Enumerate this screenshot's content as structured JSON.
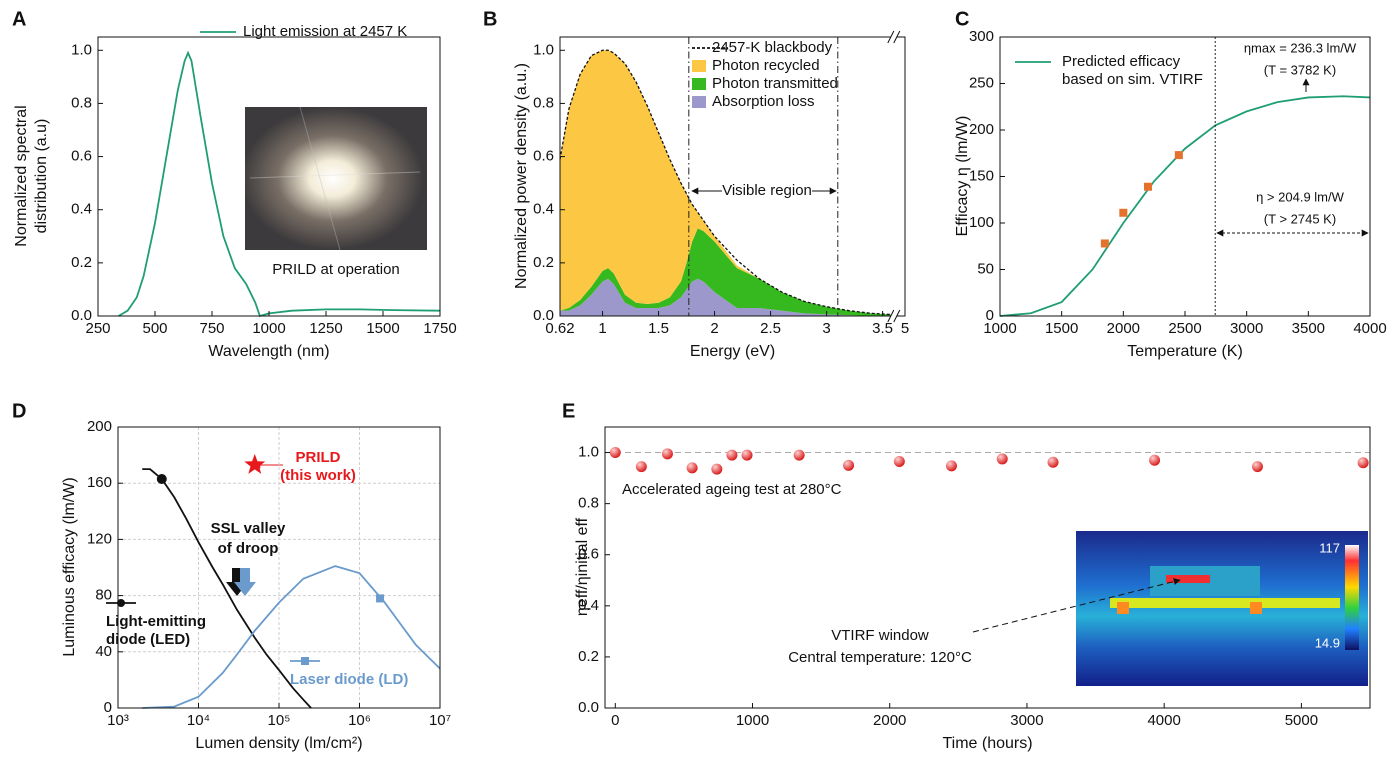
{
  "chart_data": [
    {
      "panel": "A",
      "type": "line",
      "xlabel": "Wavelength (nm)",
      "ylabel": [
        "Normalized spectral",
        "distribution (a.u)"
      ],
      "xlim": [
        250,
        1750
      ],
      "xticks": [
        250,
        500,
        750,
        1000,
        1250,
        1500,
        1750
      ],
      "ylim": [
        0,
        1.05
      ],
      "yticks": [
        {
          "value": 0,
          "label": "0.0"
        },
        0.2,
        0.4,
        0.6,
        0.8,
        {
          "value": 1,
          "label": "1.0"
        }
      ],
      "series": [
        {
          "name": "Light emission at 2457 K",
          "kind": "line",
          "color": "#1f9e74",
          "x": [
            340,
            380,
            420,
            450,
            500,
            550,
            600,
            630,
            645,
            660,
            700,
            750,
            800,
            850,
            900,
            940,
            960,
            1000,
            1100,
            1250,
            1400,
            1550,
            1750
          ],
          "values": [
            0,
            0.02,
            0.07,
            0.15,
            0.35,
            0.6,
            0.85,
            0.96,
            0.99,
            0.96,
            0.75,
            0.5,
            0.3,
            0.18,
            0.12,
            0.05,
            0.0,
            0.01,
            0.02,
            0.025,
            0.025,
            0.022,
            0.02
          ]
        }
      ],
      "annotations": [
        "PRILD at operation"
      ]
    },
    {
      "panel": "B",
      "type": "area",
      "xlabel": "Energy (eV)",
      "ylabel": "Normalized power density (a.u.)",
      "xlim": [
        0.62,
        5
      ],
      "x_break": [
        3.6,
        4.9
      ],
      "xticks": [
        0.62,
        1,
        1.5,
        2,
        2.5,
        3,
        3.5,
        5
      ],
      "ylim": [
        0,
        1.05
      ],
      "yticks": [
        {
          "value": 0,
          "label": "0.0"
        },
        0.2,
        0.4,
        0.6,
        0.8,
        {
          "value": 1,
          "label": "1.0"
        }
      ],
      "x": [
        0.62,
        0.7,
        0.8,
        0.9,
        1.0,
        1.05,
        1.1,
        1.2,
        1.3,
        1.4,
        1.5,
        1.6,
        1.7,
        1.75,
        1.8,
        1.85,
        1.9,
        2.0,
        2.2,
        2.4,
        2.6,
        2.8,
        3.0,
        3.2,
        3.4,
        3.6
      ],
      "series": [
        {
          "name": "2457-K blackbody",
          "kind": "line",
          "style": "dashed",
          "color": "#111111",
          "values": [
            0.59,
            0.78,
            0.91,
            0.98,
            1.0,
            1.0,
            0.99,
            0.95,
            0.88,
            0.79,
            0.69,
            0.59,
            0.5,
            0.46,
            0.42,
            0.39,
            0.36,
            0.3,
            0.21,
            0.14,
            0.09,
            0.055,
            0.035,
            0.02,
            0.01,
            0.005
          ]
        },
        {
          "name": "Photon recycled",
          "kind": "area",
          "color": "#fcc844",
          "values": [
            0.57,
            0.75,
            0.85,
            0.87,
            0.83,
            0.82,
            0.83,
            0.87,
            0.83,
            0.745,
            0.64,
            0.52,
            0.37,
            0.26,
            0.14,
            0.06,
            0.04,
            0.02,
            0.01,
            0,
            0,
            0,
            0,
            0,
            0,
            0
          ]
        },
        {
          "name": "Photon transmitted",
          "kind": "area",
          "color": "#36b81f",
          "values": [
            0.0,
            0.01,
            0.02,
            0.03,
            0.04,
            0.04,
            0.04,
            0.03,
            0.02,
            0.015,
            0.02,
            0.03,
            0.06,
            0.1,
            0.15,
            0.19,
            0.19,
            0.19,
            0.15,
            0.11,
            0.07,
            0.045,
            0.029,
            0.017,
            0.009,
            0.005
          ]
        },
        {
          "name": "Absorption loss",
          "kind": "area",
          "color": "#9d98cc",
          "values": [
            0.02,
            0.02,
            0.04,
            0.08,
            0.13,
            0.14,
            0.12,
            0.05,
            0.03,
            0.03,
            0.03,
            0.04,
            0.07,
            0.1,
            0.13,
            0.14,
            0.13,
            0.09,
            0.03,
            0.03,
            0.02,
            0.01,
            0.006,
            0.003,
            0.001,
            0.0
          ]
        }
      ],
      "vlines": [
        1.77,
        3.1
      ],
      "annotations": [
        "Visible region"
      ]
    },
    {
      "panel": "C",
      "type": "line",
      "xlabel": "Temperature (K)",
      "ylabel": "Efficacy η (lm/W)",
      "xlim": [
        1000,
        4000
      ],
      "xticks": [
        1000,
        1500,
        2000,
        2500,
        3000,
        3500,
        4000
      ],
      "ylim": [
        0,
        300
      ],
      "yticks": [
        0,
        50,
        100,
        150,
        200,
        250,
        300
      ],
      "series": [
        {
          "name": [
            "Predicted efficacy",
            "based on sim. VTIRF"
          ],
          "kind": "line",
          "color": "#1f9e74",
          "x": [
            1000,
            1250,
            1500,
            1750,
            2000,
            2250,
            2500,
            2745,
            3000,
            3250,
            3500,
            3782,
            4000
          ],
          "values": [
            0,
            3,
            15,
            50,
            100,
            145,
            180,
            204.9,
            220,
            230,
            235,
            236.3,
            235
          ]
        },
        {
          "kind": "points",
          "marker": "square",
          "color": "#e4722c",
          "x": [
            1850,
            2000,
            2200,
            2450
          ],
          "values": [
            78,
            111,
            139,
            173
          ]
        }
      ],
      "vlines": [
        2745
      ],
      "annotations": [
        "ηmax = 236.3 lm/W",
        "(T = 3782 K)",
        "η > 204.9 lm/W",
        "(T > 2745 K)"
      ]
    },
    {
      "panel": "D",
      "type": "line",
      "xscale": "log",
      "grid": true,
      "xlabel": "Lumen density (lm/cm²)",
      "ylabel": "Luminous efficacy (lm/W)",
      "xlim": [
        1000,
        10000000
      ],
      "xticks": [
        {
          "value": 1000,
          "label": "10³"
        },
        {
          "value": 10000,
          "label": "10⁴"
        },
        {
          "value": 100000,
          "label": "10⁵"
        },
        {
          "value": 1000000,
          "label": "10⁶"
        },
        {
          "value": 10000000,
          "label": "10⁷"
        }
      ],
      "ylim": [
        0,
        200
      ],
      "yticks": [
        0,
        40,
        80,
        120,
        160,
        200
      ],
      "series": [
        {
          "name": [
            "Light-emitting",
            "diode (LED)"
          ],
          "kind": "line",
          "color": "#111111",
          "x": [
            2000,
            2500,
            3500,
            5000,
            7000,
            10000,
            15000,
            20000,
            30000,
            50000,
            70000,
            100000,
            150000,
            200000,
            250000
          ],
          "values": [
            170,
            170,
            163,
            150,
            135,
            118,
            100,
            88,
            70,
            50,
            38,
            27,
            14,
            6,
            0
          ]
        },
        {
          "name": [
            "Laser diode (LD)"
          ],
          "kind": "line",
          "color": "#6a9bcc",
          "x": [
            2000,
            5000,
            10000,
            20000,
            30000,
            50000,
            100000,
            200000,
            500000,
            1000000,
            2000000,
            5000000,
            10000000
          ],
          "values": [
            0,
            1,
            8,
            25,
            38,
            55,
            75,
            92,
            101,
            96,
            76,
            45,
            28
          ]
        },
        {
          "kind": "points",
          "marker": "circle",
          "color": "#111111",
          "x": [
            3500
          ],
          "values": [
            163
          ]
        },
        {
          "name": [
            "PRILD",
            "(this work)"
          ],
          "kind": "points",
          "marker": "star",
          "color": "#e8191c",
          "x": [
            50000
          ],
          "values": [
            173
          ]
        },
        {
          "kind": "points",
          "marker": "square",
          "color": "#6a9bcc",
          "x": [
            1800000
          ],
          "values": [
            78
          ]
        }
      ],
      "annotations": [
        "SSL valley",
        "of droop"
      ]
    },
    {
      "panel": "E",
      "type": "scatter",
      "xlabel": "Time (hours)",
      "ylabel": "ηeff/ηinitial eff",
      "xlim": [
        -75,
        5500
      ],
      "xticks": [
        0,
        1000,
        2000,
        3000,
        4000,
        5000
      ],
      "ylim": [
        0,
        1.1
      ],
      "yticks": [
        {
          "value": 0,
          "label": "0.0"
        },
        0.2,
        0.4,
        0.6,
        0.8,
        {
          "value": 1,
          "label": "1.0"
        }
      ],
      "series": [
        {
          "kind": "points",
          "marker": "ball",
          "color": "#d91c1c",
          "x": [
            0,
            190,
            380,
            560,
            740,
            850,
            960,
            1340,
            1700,
            2070,
            2450,
            2820,
            3190,
            3930,
            4680,
            5450
          ],
          "values": [
            1.0,
            0.945,
            0.995,
            0.94,
            0.935,
            0.99,
            0.99,
            0.99,
            0.95,
            0.965,
            0.948,
            0.975,
            0.962,
            0.97,
            0.945,
            0.96
          ]
        }
      ],
      "hlines": [
        1.0
      ],
      "annotations": [
        "Accelerated ageing test at 280°C",
        "VTIRF window",
        "Central temperature: 120°C",
        "117",
        "14.9"
      ]
    }
  ]
}
